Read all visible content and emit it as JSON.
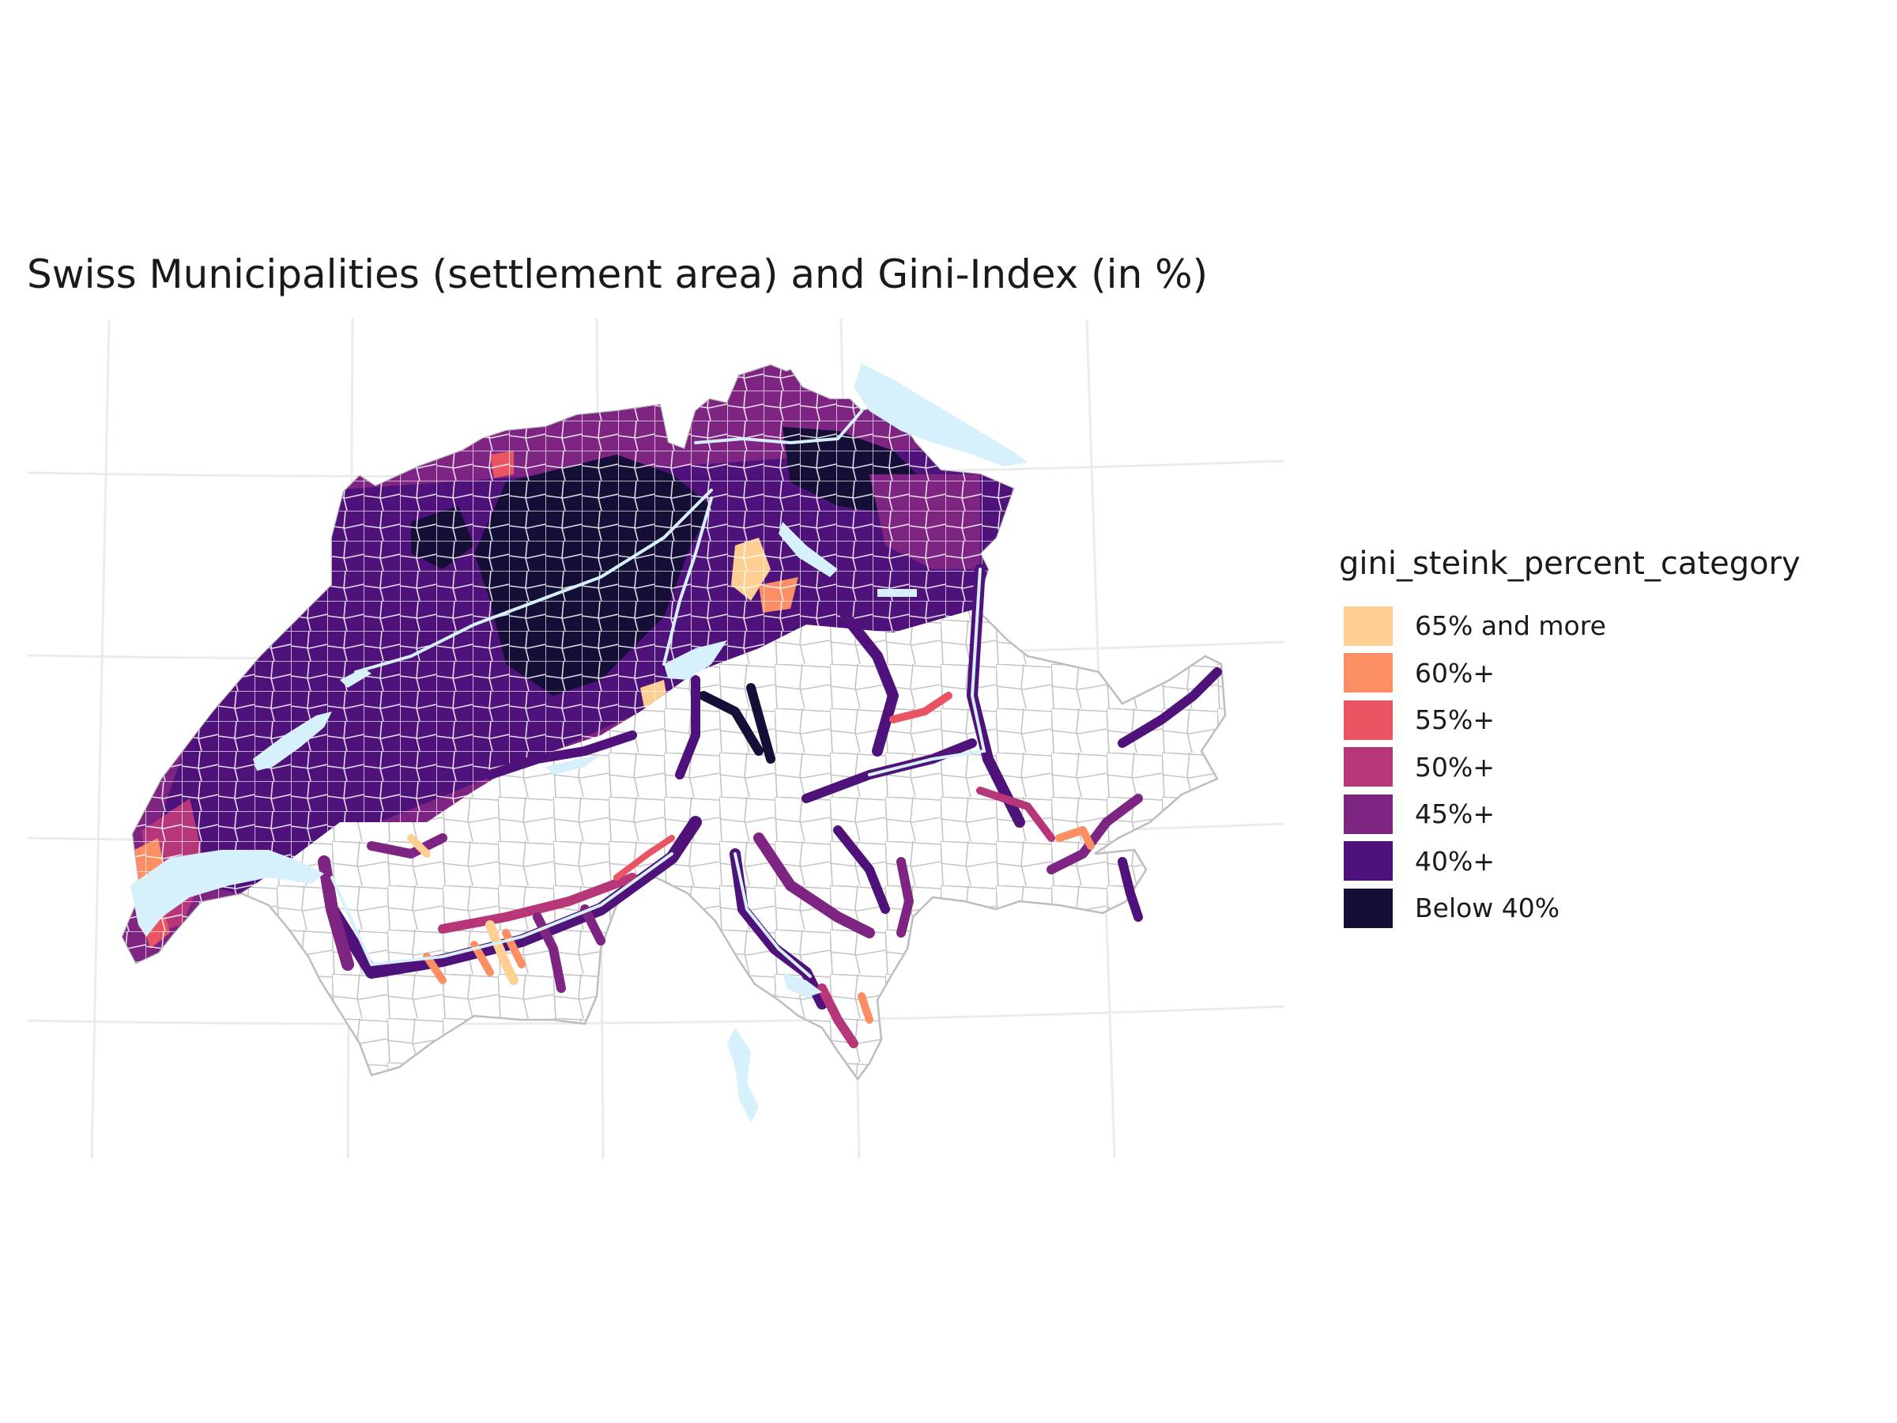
{
  "title": "Swiss Municipalities (settlement area) and Gini-Index (in %)",
  "legend": {
    "title": "gini_steink_percent_category",
    "items": [
      {
        "label": "65% and more",
        "color": "#fecf92"
      },
      {
        "label": "60%+",
        "color": "#fc8e64"
      },
      {
        "label": "55%+",
        "color": "#e85462"
      },
      {
        "label": "50%+",
        "color": "#b63679"
      },
      {
        "label": "45%+",
        "color": "#7e2482"
      },
      {
        "label": "40%+",
        "color": "#4f127b"
      },
      {
        "label": "Below 40%",
        "color": "#150e37"
      }
    ]
  },
  "colors": {
    "lake": "#d6f0fc",
    "municipality_border": "#bdbdbd",
    "grid": "#ebebeb",
    "background": "#ffffff"
  },
  "map": {
    "type": "choropleth",
    "region": "Switzerland",
    "unit": "municipality (settlement area)",
    "variable": "gini_steink_percent_category",
    "grid": true,
    "axis_labels_shown": false,
    "legend_position": "right"
  }
}
